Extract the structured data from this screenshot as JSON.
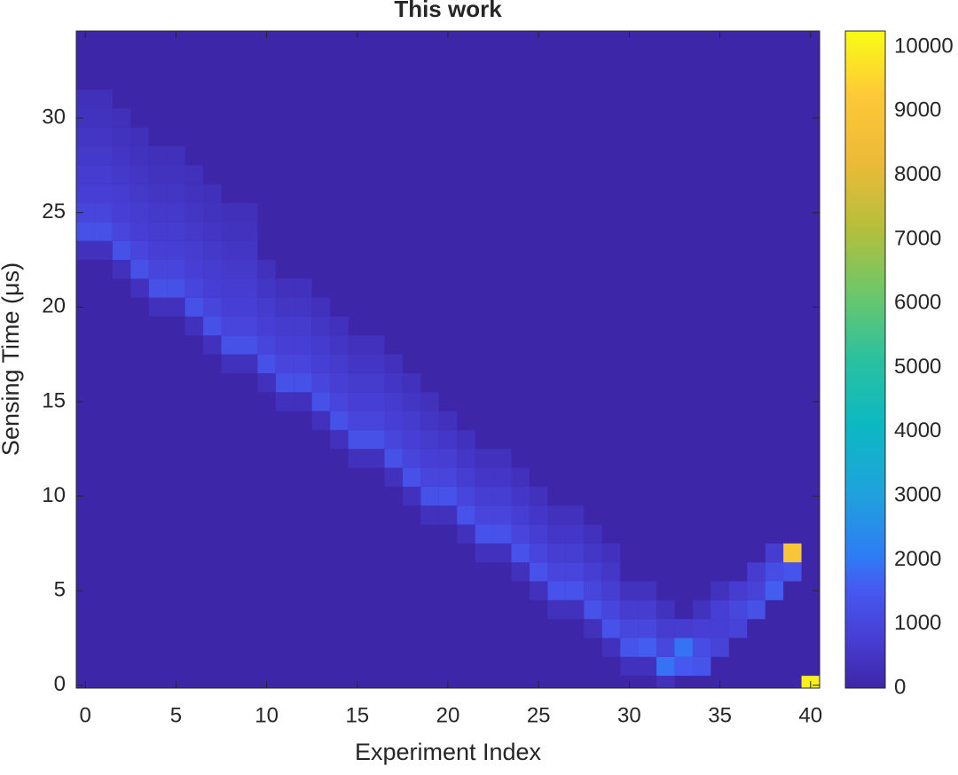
{
  "chart_data": {
    "type": "heatmap",
    "title": "This work",
    "x_label": "Experiment Index",
    "y_label": "Sensing Time (μs)",
    "xlim": [
      -0.5,
      40.5
    ],
    "ylim": [
      -0.15,
      34.6
    ],
    "xticks": [
      0,
      5,
      10,
      15,
      20,
      25,
      30,
      35,
      40
    ],
    "yticks": [
      0,
      5,
      10,
      15,
      20,
      25,
      30
    ],
    "colormap": "parula",
    "clim": [
      0,
      10250
    ],
    "cticks": [
      0,
      1000,
      2000,
      3000,
      4000,
      5000,
      6000,
      7000,
      8000,
      9000,
      10000
    ],
    "cells": [
      [
        0,
        23,
        350
      ],
      [
        0,
        24,
        1300
      ],
      [
        0,
        25,
        950
      ],
      [
        0,
        26,
        800
      ],
      [
        0,
        27,
        700
      ],
      [
        0,
        28,
        600
      ],
      [
        0,
        29,
        500
      ],
      [
        0,
        30,
        400
      ],
      [
        0,
        31,
        300
      ],
      [
        1,
        23,
        350
      ],
      [
        1,
        24,
        1300
      ],
      [
        1,
        25,
        950
      ],
      [
        1,
        26,
        800
      ],
      [
        1,
        27,
        700
      ],
      [
        1,
        28,
        600
      ],
      [
        1,
        29,
        500
      ],
      [
        1,
        30,
        400
      ],
      [
        1,
        31,
        300
      ],
      [
        2,
        22,
        350
      ],
      [
        2,
        23,
        1300
      ],
      [
        2,
        24,
        950
      ],
      [
        2,
        25,
        800
      ],
      [
        2,
        26,
        700
      ],
      [
        2,
        27,
        600
      ],
      [
        2,
        28,
        500
      ],
      [
        2,
        29,
        400
      ],
      [
        2,
        30,
        300
      ],
      [
        3,
        21,
        350
      ],
      [
        3,
        22,
        1300
      ],
      [
        3,
        23,
        950
      ],
      [
        3,
        24,
        800
      ],
      [
        3,
        25,
        700
      ],
      [
        3,
        26,
        600
      ],
      [
        3,
        27,
        500
      ],
      [
        3,
        28,
        400
      ],
      [
        3,
        29,
        300
      ],
      [
        4,
        20,
        350
      ],
      [
        4,
        21,
        1300
      ],
      [
        4,
        22,
        950
      ],
      [
        4,
        23,
        800
      ],
      [
        4,
        24,
        700
      ],
      [
        4,
        25,
        600
      ],
      [
        4,
        26,
        500
      ],
      [
        4,
        27,
        400
      ],
      [
        4,
        28,
        300
      ],
      [
        5,
        20,
        350
      ],
      [
        5,
        21,
        1300
      ],
      [
        5,
        22,
        950
      ],
      [
        5,
        23,
        800
      ],
      [
        5,
        24,
        700
      ],
      [
        5,
        25,
        600
      ],
      [
        5,
        26,
        500
      ],
      [
        5,
        27,
        400
      ],
      [
        5,
        28,
        300
      ],
      [
        6,
        19,
        350
      ],
      [
        6,
        20,
        1300
      ],
      [
        6,
        21,
        950
      ],
      [
        6,
        22,
        800
      ],
      [
        6,
        23,
        700
      ],
      [
        6,
        24,
        600
      ],
      [
        6,
        25,
        500
      ],
      [
        6,
        26,
        400
      ],
      [
        6,
        27,
        300
      ],
      [
        7,
        18,
        350
      ],
      [
        7,
        19,
        1300
      ],
      [
        7,
        20,
        950
      ],
      [
        7,
        21,
        800
      ],
      [
        7,
        22,
        700
      ],
      [
        7,
        23,
        600
      ],
      [
        7,
        24,
        500
      ],
      [
        7,
        25,
        400
      ],
      [
        7,
        26,
        300
      ],
      [
        8,
        17,
        350
      ],
      [
        8,
        18,
        1300
      ],
      [
        8,
        19,
        950
      ],
      [
        8,
        20,
        800
      ],
      [
        8,
        21,
        700
      ],
      [
        8,
        22,
        600
      ],
      [
        8,
        23,
        500
      ],
      [
        8,
        24,
        400
      ],
      [
        8,
        25,
        300
      ],
      [
        9,
        17,
        350
      ],
      [
        9,
        18,
        1300
      ],
      [
        9,
        19,
        950
      ],
      [
        9,
        20,
        800
      ],
      [
        9,
        21,
        700
      ],
      [
        9,
        22,
        600
      ],
      [
        9,
        23,
        500
      ],
      [
        9,
        24,
        400
      ],
      [
        9,
        25,
        300
      ],
      [
        10,
        16,
        350
      ],
      [
        10,
        17,
        1300
      ],
      [
        10,
        18,
        950
      ],
      [
        10,
        19,
        800
      ],
      [
        10,
        20,
        650
      ],
      [
        10,
        21,
        500
      ],
      [
        10,
        22,
        350
      ],
      [
        11,
        15,
        350
      ],
      [
        11,
        16,
        1300
      ],
      [
        11,
        17,
        950
      ],
      [
        11,
        18,
        800
      ],
      [
        11,
        19,
        650
      ],
      [
        11,
        20,
        500
      ],
      [
        11,
        21,
        350
      ],
      [
        12,
        15,
        350
      ],
      [
        12,
        16,
        1300
      ],
      [
        12,
        17,
        950
      ],
      [
        12,
        18,
        800
      ],
      [
        12,
        19,
        650
      ],
      [
        12,
        20,
        500
      ],
      [
        12,
        21,
        350
      ],
      [
        13,
        14,
        350
      ],
      [
        13,
        15,
        1300
      ],
      [
        13,
        16,
        950
      ],
      [
        13,
        17,
        800
      ],
      [
        13,
        18,
        650
      ],
      [
        13,
        19,
        500
      ],
      [
        13,
        20,
        350
      ],
      [
        14,
        13,
        350
      ],
      [
        14,
        14,
        1300
      ],
      [
        14,
        15,
        950
      ],
      [
        14,
        16,
        800
      ],
      [
        14,
        17,
        650
      ],
      [
        14,
        18,
        500
      ],
      [
        14,
        19,
        350
      ],
      [
        15,
        12,
        350
      ],
      [
        15,
        13,
        1300
      ],
      [
        15,
        14,
        950
      ],
      [
        15,
        15,
        800
      ],
      [
        15,
        16,
        650
      ],
      [
        15,
        17,
        500
      ],
      [
        15,
        18,
        350
      ],
      [
        16,
        12,
        350
      ],
      [
        16,
        13,
        1300
      ],
      [
        16,
        14,
        950
      ],
      [
        16,
        15,
        800
      ],
      [
        16,
        16,
        650
      ],
      [
        16,
        17,
        500
      ],
      [
        16,
        18,
        350
      ],
      [
        17,
        11,
        350
      ],
      [
        17,
        12,
        1300
      ],
      [
        17,
        13,
        950
      ],
      [
        17,
        14,
        800
      ],
      [
        17,
        15,
        650
      ],
      [
        17,
        16,
        500
      ],
      [
        17,
        17,
        350
      ],
      [
        18,
        10,
        350
      ],
      [
        18,
        11,
        1300
      ],
      [
        18,
        12,
        950
      ],
      [
        18,
        13,
        800
      ],
      [
        18,
        14,
        650
      ],
      [
        18,
        15,
        500
      ],
      [
        18,
        16,
        350
      ],
      [
        19,
        9,
        350
      ],
      [
        19,
        10,
        1300
      ],
      [
        19,
        11,
        950
      ],
      [
        19,
        12,
        800
      ],
      [
        19,
        13,
        650
      ],
      [
        19,
        14,
        500
      ],
      [
        19,
        15,
        350
      ],
      [
        20,
        9,
        350
      ],
      [
        20,
        10,
        1350
      ],
      [
        20,
        11,
        950
      ],
      [
        20,
        12,
        750
      ],
      [
        20,
        13,
        550
      ],
      [
        20,
        14,
        350
      ],
      [
        21,
        8,
        350
      ],
      [
        21,
        9,
        1350
      ],
      [
        21,
        10,
        950
      ],
      [
        21,
        11,
        750
      ],
      [
        21,
        12,
        550
      ],
      [
        21,
        13,
        350
      ],
      [
        22,
        7,
        350
      ],
      [
        22,
        8,
        1350
      ],
      [
        22,
        9,
        950
      ],
      [
        22,
        10,
        750
      ],
      [
        22,
        11,
        550
      ],
      [
        22,
        12,
        350
      ],
      [
        23,
        7,
        350
      ],
      [
        23,
        8,
        1350
      ],
      [
        23,
        9,
        950
      ],
      [
        23,
        10,
        750
      ],
      [
        23,
        11,
        550
      ],
      [
        23,
        12,
        350
      ],
      [
        24,
        6,
        350
      ],
      [
        24,
        7,
        1350
      ],
      [
        24,
        8,
        950
      ],
      [
        24,
        9,
        750
      ],
      [
        24,
        10,
        550
      ],
      [
        24,
        11,
        350
      ],
      [
        25,
        5,
        350
      ],
      [
        25,
        6,
        1350
      ],
      [
        25,
        7,
        950
      ],
      [
        25,
        8,
        750
      ],
      [
        25,
        9,
        550
      ],
      [
        25,
        10,
        350
      ],
      [
        26,
        4,
        350
      ],
      [
        26,
        5,
        1350
      ],
      [
        26,
        6,
        950
      ],
      [
        26,
        7,
        750
      ],
      [
        26,
        8,
        550
      ],
      [
        26,
        9,
        350
      ],
      [
        27,
        4,
        350
      ],
      [
        27,
        5,
        1350
      ],
      [
        27,
        6,
        950
      ],
      [
        27,
        7,
        750
      ],
      [
        27,
        8,
        550
      ],
      [
        27,
        9,
        350
      ],
      [
        28,
        3,
        350
      ],
      [
        28,
        4,
        1350
      ],
      [
        28,
        5,
        950
      ],
      [
        28,
        6,
        750
      ],
      [
        28,
        7,
        550
      ],
      [
        28,
        8,
        350
      ],
      [
        29,
        2,
        350
      ],
      [
        29,
        3,
        1350
      ],
      [
        29,
        4,
        950
      ],
      [
        29,
        5,
        750
      ],
      [
        29,
        6,
        550
      ],
      [
        29,
        7,
        350
      ],
      [
        30,
        1,
        350
      ],
      [
        30,
        2,
        1400
      ],
      [
        30,
        3,
        1000
      ],
      [
        30,
        4,
        700
      ],
      [
        30,
        5,
        400
      ],
      [
        31,
        1,
        350
      ],
      [
        31,
        2,
        1600
      ],
      [
        31,
        3,
        1000
      ],
      [
        31,
        4,
        700
      ],
      [
        31,
        5,
        400
      ],
      [
        32,
        0,
        350
      ],
      [
        32,
        1,
        1900
      ],
      [
        32,
        2,
        1000
      ],
      [
        32,
        3,
        700
      ],
      [
        32,
        4,
        400
      ],
      [
        33,
        1,
        1500
      ],
      [
        33,
        2,
        1900
      ],
      [
        33,
        3,
        700
      ],
      [
        34,
        1,
        1400
      ],
      [
        34,
        2,
        1200
      ],
      [
        34,
        3,
        800
      ],
      [
        34,
        4,
        400
      ],
      [
        35,
        2,
        900
      ],
      [
        35,
        3,
        800
      ],
      [
        35,
        4,
        800
      ],
      [
        35,
        5,
        400
      ],
      [
        36,
        3,
        900
      ],
      [
        36,
        4,
        1000
      ],
      [
        36,
        5,
        700
      ],
      [
        37,
        4,
        1300
      ],
      [
        37,
        5,
        900
      ],
      [
        37,
        6,
        700
      ],
      [
        38,
        5,
        1600
      ],
      [
        38,
        6,
        1200
      ],
      [
        38,
        7,
        700
      ],
      [
        39,
        6,
        1400
      ],
      [
        39,
        7,
        9000
      ],
      [
        40,
        0,
        10000
      ]
    ]
  }
}
